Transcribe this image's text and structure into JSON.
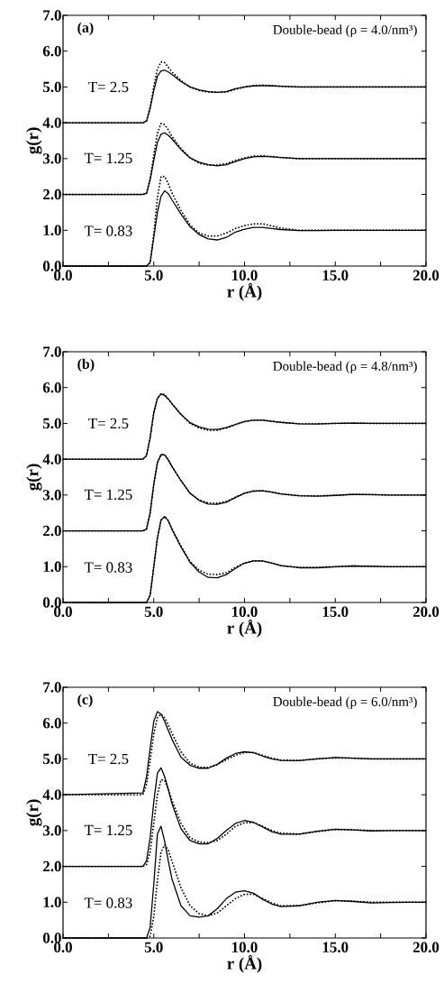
{
  "chart_data": [
    {
      "type": "line",
      "xlabel": "r (Å)",
      "ylabel": "g(r)",
      "xlim": [
        0,
        20
      ],
      "ylim": [
        0,
        7
      ],
      "xticks": [
        {
          "value": 0,
          "label": "0.0"
        },
        {
          "value": 5,
          "label": "5.0"
        },
        {
          "value": 10,
          "label": "10.0"
        },
        {
          "value": 15,
          "label": "15.0"
        },
        {
          "value": 20,
          "label": "20.0"
        }
      ],
      "yticks": [
        {
          "value": 0,
          "label": "0.0"
        },
        {
          "value": 1,
          "label": "1.0"
        },
        {
          "value": 2,
          "label": "2.0"
        },
        {
          "value": 3,
          "label": "3.0"
        },
        {
          "value": 4,
          "label": "4.0"
        },
        {
          "value": 5,
          "label": "5.0"
        },
        {
          "value": 6,
          "label": "6.0"
        },
        {
          "value": 7,
          "label": "7.0"
        }
      ],
      "annotations": [
        "(a)",
        "Double-bead (ρ = 4.0/nm³)",
        "T= 2.5",
        "T= 1.25",
        "T= 0.83"
      ],
      "x": [
        0,
        4.4,
        4.6,
        4.8,
        5.0,
        5.2,
        5.4,
        5.6,
        5.8,
        6.0,
        6.5,
        7,
        7.5,
        8,
        8.5,
        9,
        9.5,
        10,
        10.5,
        11,
        11.5,
        12,
        13,
        14,
        15,
        16,
        17,
        18,
        19,
        20
      ],
      "series": [
        {
          "color": "#000000",
          "line_style": "solid",
          "values": [
            4,
            4,
            4.05,
            4.4,
            4.9,
            5.3,
            5.45,
            5.47,
            5.42,
            5.35,
            5.15,
            5.0,
            4.92,
            4.87,
            4.85,
            4.87,
            4.95,
            5.0,
            5.03,
            5.04,
            5.03,
            5.02,
            5.0,
            5.0,
            5.0,
            5.0,
            5.0,
            5.0,
            5.0,
            5.0
          ]
        },
        {
          "color": "#000000",
          "line_style": "dotted",
          "values": [
            4,
            4,
            4.05,
            4.45,
            5.0,
            5.5,
            5.7,
            5.68,
            5.55,
            5.42,
            5.18,
            5.0,
            4.9,
            4.86,
            4.85,
            4.86,
            4.93,
            5.0,
            5.04,
            5.05,
            5.04,
            5.02,
            5.0,
            5.0,
            5.0,
            5.0,
            5.0,
            5.0,
            5.0,
            5.0
          ]
        },
        {
          "color": "#000000",
          "line_style": "solid",
          "values": [
            2,
            2,
            2.03,
            2.4,
            2.95,
            3.45,
            3.68,
            3.72,
            3.65,
            3.55,
            3.25,
            3.02,
            2.9,
            2.83,
            2.8,
            2.83,
            2.92,
            3.0,
            3.05,
            3.06,
            3.05,
            3.03,
            3.0,
            3.0,
            3.0,
            3.0,
            3.0,
            3.0,
            3.0,
            3.0
          ]
        },
        {
          "color": "#000000",
          "line_style": "dotted",
          "values": [
            2,
            2,
            2.03,
            2.45,
            3.1,
            3.7,
            3.98,
            3.95,
            3.8,
            3.62,
            3.28,
            3.02,
            2.87,
            2.82,
            2.82,
            2.86,
            2.95,
            3.02,
            3.07,
            3.08,
            3.06,
            3.03,
            3.0,
            3.0,
            3.0,
            3.0,
            3.0,
            3.0,
            3.0,
            3.0
          ]
        },
        {
          "color": "#000000",
          "line_style": "solid",
          "values": [
            0,
            0,
            0,
            0.1,
            0.8,
            1.5,
            1.95,
            2.1,
            2.02,
            1.85,
            1.45,
            1.1,
            0.88,
            0.76,
            0.73,
            0.8,
            0.95,
            1.03,
            1.08,
            1.08,
            1.05,
            1.02,
            0.99,
            0.99,
            1.0,
            1.0,
            1.0,
            1.0,
            1.0,
            1.0
          ]
        },
        {
          "color": "#000000",
          "line_style": "dotted",
          "values": [
            0,
            0,
            0,
            0.1,
            0.9,
            1.9,
            2.5,
            2.5,
            2.3,
            2.05,
            1.55,
            1.15,
            0.92,
            0.84,
            0.84,
            0.92,
            1.05,
            1.13,
            1.18,
            1.18,
            1.12,
            1.06,
            1.0,
            1.0,
            1.0,
            1.0,
            1.0,
            1.0,
            1.0,
            1.0
          ]
        }
      ]
    },
    {
      "type": "line",
      "xlabel": "r (Å)",
      "ylabel": "g(r)",
      "xlim": [
        0,
        20
      ],
      "ylim": [
        0,
        7
      ],
      "xticks": [
        {
          "value": 0,
          "label": "0.0"
        },
        {
          "value": 5,
          "label": "5.0"
        },
        {
          "value": 10,
          "label": "10.0"
        },
        {
          "value": 15,
          "label": "15.0"
        },
        {
          "value": 20,
          "label": "20.0"
        }
      ],
      "yticks": [
        {
          "value": 0,
          "label": "0.0"
        },
        {
          "value": 1,
          "label": "1.0"
        },
        {
          "value": 2,
          "label": "2.0"
        },
        {
          "value": 3,
          "label": "3.0"
        },
        {
          "value": 4,
          "label": "4.0"
        },
        {
          "value": 5,
          "label": "5.0"
        },
        {
          "value": 6,
          "label": "6.0"
        },
        {
          "value": 7,
          "label": "7.0"
        }
      ],
      "annotations": [
        "(b)",
        "Double-bead (ρ = 4.8/nm³)",
        "T= 2.5",
        "T= 1.25",
        "T= 0.83"
      ],
      "x": [
        0,
        4.4,
        4.6,
        4.8,
        5.0,
        5.2,
        5.4,
        5.6,
        5.8,
        6.0,
        6.5,
        7,
        7.5,
        8,
        8.5,
        9,
        9.5,
        10,
        10.5,
        11,
        11.5,
        12,
        13,
        14,
        15,
        16,
        17,
        18,
        19,
        20
      ],
      "series": [
        {
          "color": "#000000",
          "line_style": "solid",
          "values": [
            4,
            4,
            4.1,
            4.6,
            5.3,
            5.7,
            5.82,
            5.78,
            5.68,
            5.55,
            5.25,
            5.02,
            4.9,
            4.84,
            4.83,
            4.88,
            4.97,
            5.05,
            5.09,
            5.09,
            5.06,
            5.03,
            4.99,
            4.98,
            5.0,
            5.01,
            5.0,
            5.0,
            5.0,
            5.0
          ]
        },
        {
          "color": "#000000",
          "line_style": "dotted",
          "values": [
            4,
            4,
            4.1,
            4.6,
            5.3,
            5.7,
            5.83,
            5.8,
            5.68,
            5.55,
            5.25,
            5.0,
            4.87,
            4.81,
            4.81,
            4.87,
            4.97,
            5.05,
            5.09,
            5.09,
            5.06,
            5.03,
            4.99,
            4.99,
            5.0,
            5.01,
            5.0,
            5.0,
            5.0,
            5.0
          ]
        },
        {
          "color": "#000000",
          "line_style": "solid",
          "values": [
            2,
            2,
            2.05,
            2.5,
            3.3,
            3.9,
            4.13,
            4.12,
            3.98,
            3.8,
            3.4,
            3.05,
            2.85,
            2.75,
            2.74,
            2.8,
            2.93,
            3.05,
            3.11,
            3.12,
            3.08,
            3.03,
            2.98,
            2.97,
            2.99,
            3.02,
            3.01,
            3.0,
            3.0,
            3.0
          ]
        },
        {
          "color": "#000000",
          "line_style": "dotted",
          "values": [
            2,
            2,
            2.05,
            2.5,
            3.3,
            3.9,
            4.13,
            4.12,
            3.98,
            3.8,
            3.4,
            3.05,
            2.86,
            2.78,
            2.77,
            2.82,
            2.94,
            3.05,
            3.11,
            3.12,
            3.08,
            3.03,
            2.98,
            2.98,
            2.99,
            3.02,
            3.01,
            3.0,
            3.0,
            3.0
          ]
        },
        {
          "color": "#000000",
          "line_style": "solid",
          "values": [
            0,
            0,
            0,
            0.2,
            1.0,
            1.8,
            2.3,
            2.4,
            2.28,
            2.05,
            1.55,
            1.12,
            0.85,
            0.7,
            0.69,
            0.78,
            0.95,
            1.1,
            1.16,
            1.16,
            1.1,
            1.03,
            0.97,
            0.97,
            1.0,
            1.02,
            1.01,
            1.0,
            1.0,
            1.0
          ]
        },
        {
          "color": "#000000",
          "line_style": "dotted",
          "values": [
            0,
            0,
            0,
            0.2,
            1.0,
            1.8,
            2.3,
            2.4,
            2.28,
            2.05,
            1.57,
            1.15,
            0.9,
            0.79,
            0.78,
            0.83,
            0.98,
            1.1,
            1.16,
            1.16,
            1.1,
            1.03,
            0.98,
            0.98,
            1.0,
            1.02,
            1.01,
            1.0,
            1.0,
            1.0
          ]
        }
      ]
    },
    {
      "type": "line",
      "xlabel": "r (Å)",
      "ylabel": "g(r)",
      "xlim": [
        0,
        20
      ],
      "ylim": [
        0,
        7
      ],
      "xticks": [
        {
          "value": 0,
          "label": "0.0"
        },
        {
          "value": 5,
          "label": "5.0"
        },
        {
          "value": 10,
          "label": "10.0"
        },
        {
          "value": 15,
          "label": "15.0"
        },
        {
          "value": 20,
          "label": "20.0"
        }
      ],
      "yticks": [
        {
          "value": 0,
          "label": "0.0"
        },
        {
          "value": 1,
          "label": "1.0"
        },
        {
          "value": 2,
          "label": "2.0"
        },
        {
          "value": 3,
          "label": "3.0"
        },
        {
          "value": 4,
          "label": "4.0"
        },
        {
          "value": 5,
          "label": "5.0"
        },
        {
          "value": 6,
          "label": "6.0"
        },
        {
          "value": 7,
          "label": "7.0"
        }
      ],
      "annotations": [
        "(c)",
        "Double-bead (ρ = 6.0/nm³)",
        "T= 2.5",
        "T= 1.25",
        "T= 0.83"
      ],
      "x": [
        0,
        4.4,
        4.6,
        4.8,
        5.0,
        5.2,
        5.4,
        5.6,
        5.8,
        6.0,
        6.5,
        7,
        7.5,
        8,
        8.5,
        9,
        9.5,
        10,
        10.5,
        11,
        11.5,
        12,
        13,
        14,
        15,
        16,
        17,
        18,
        19,
        20
      ],
      "series": [
        {
          "color": "#000000",
          "line_style": "solid",
          "values": [
            4,
            4.05,
            4.5,
            5.3,
            6.05,
            6.32,
            6.25,
            6.05,
            5.8,
            5.55,
            5.05,
            4.82,
            4.74,
            4.74,
            4.85,
            5.02,
            5.15,
            5.2,
            5.17,
            5.08,
            5.0,
            4.96,
            4.95,
            5.0,
            5.04,
            5.02,
            5.0,
            5.0,
            5.0,
            5.0
          ]
        },
        {
          "color": "#000000",
          "line_style": "dotted",
          "values": [
            4,
            4,
            4.3,
            4.95,
            5.7,
            6.15,
            6.25,
            6.15,
            5.95,
            5.72,
            5.2,
            4.88,
            4.77,
            4.76,
            4.84,
            4.98,
            5.1,
            5.18,
            5.18,
            5.1,
            5.02,
            4.97,
            4.96,
            5.0,
            5.03,
            5.02,
            5.0,
            5.0,
            5.0,
            5.0
          ]
        },
        {
          "color": "#000000",
          "line_style": "solid",
          "values": [
            2,
            2,
            2.15,
            2.8,
            3.8,
            4.6,
            4.75,
            4.5,
            4.15,
            3.75,
            3.05,
            2.72,
            2.63,
            2.63,
            2.78,
            3.0,
            3.2,
            3.28,
            3.23,
            3.1,
            2.97,
            2.9,
            2.9,
            2.98,
            3.04,
            3.02,
            2.99,
            3.0,
            3.0,
            3.0
          ]
        },
        {
          "color": "#000000",
          "line_style": "dotted",
          "values": [
            2,
            2,
            2.05,
            2.4,
            3.2,
            4.0,
            4.42,
            4.4,
            4.15,
            3.85,
            3.2,
            2.8,
            2.68,
            2.66,
            2.72,
            2.9,
            3.12,
            3.22,
            3.22,
            3.12,
            3.0,
            2.93,
            2.9,
            2.97,
            3.03,
            3.02,
            3.0,
            3.0,
            3.0,
            3.0
          ]
        },
        {
          "color": "#000000",
          "line_style": "solid",
          "values": [
            0,
            0,
            0,
            0.3,
            1.5,
            2.9,
            3.12,
            2.7,
            2.15,
            1.65,
            0.9,
            0.62,
            0.58,
            0.62,
            0.82,
            1.1,
            1.28,
            1.32,
            1.25,
            1.08,
            0.95,
            0.88,
            0.9,
            1.0,
            1.05,
            1.02,
            0.98,
            0.99,
            1.0,
            1.0
          ]
        },
        {
          "color": "#000000",
          "line_style": "dotted",
          "values": [
            0,
            0,
            0,
            0.05,
            0.6,
            1.6,
            2.4,
            2.6,
            2.45,
            2.15,
            1.4,
            0.9,
            0.68,
            0.62,
            0.7,
            0.9,
            1.1,
            1.22,
            1.22,
            1.1,
            0.98,
            0.9,
            0.9,
            0.98,
            1.04,
            1.03,
            1.0,
            1.0,
            1.0,
            1.0
          ]
        }
      ]
    }
  ]
}
